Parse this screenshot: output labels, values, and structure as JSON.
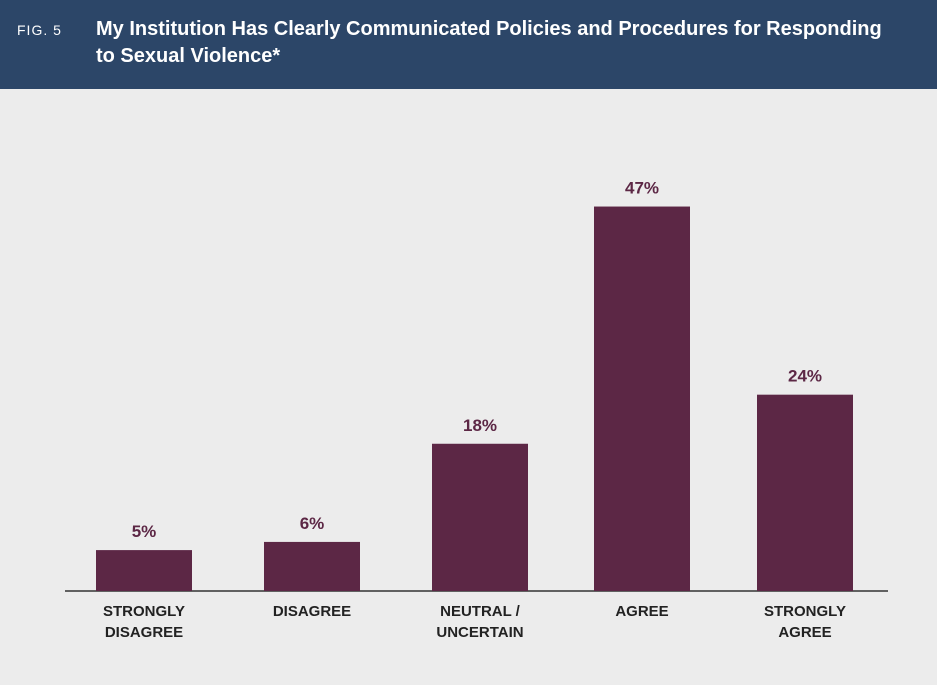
{
  "header": {
    "fig_label": "FIG. 5",
    "title": "My Institution Has Clearly Communicated Policies and Procedures for Responding to Sexual Violence*"
  },
  "colors": {
    "header_bg": "#2c4668",
    "panel_bg": "#ececec",
    "bar": "#5c2745",
    "value_label": "#5c2745",
    "axis": "#333333"
  },
  "chart_data": {
    "type": "bar",
    "title": "My Institution Has Clearly Communicated Policies and Procedures for Responding to Sexual Violence*",
    "categories": [
      [
        "STRONGLY",
        "DISAGREE"
      ],
      [
        "DISAGREE"
      ],
      [
        "NEUTRAL /",
        "UNCERTAIN"
      ],
      [
        "AGREE"
      ],
      [
        "STRONGLY",
        "AGREE"
      ]
    ],
    "values": [
      5,
      6,
      18,
      47,
      24
    ],
    "value_labels": [
      "5%",
      "6%",
      "18%",
      "47%",
      "24%"
    ],
    "unit": "%",
    "ylim": [
      0,
      50
    ],
    "grid": false,
    "legend": "none"
  }
}
